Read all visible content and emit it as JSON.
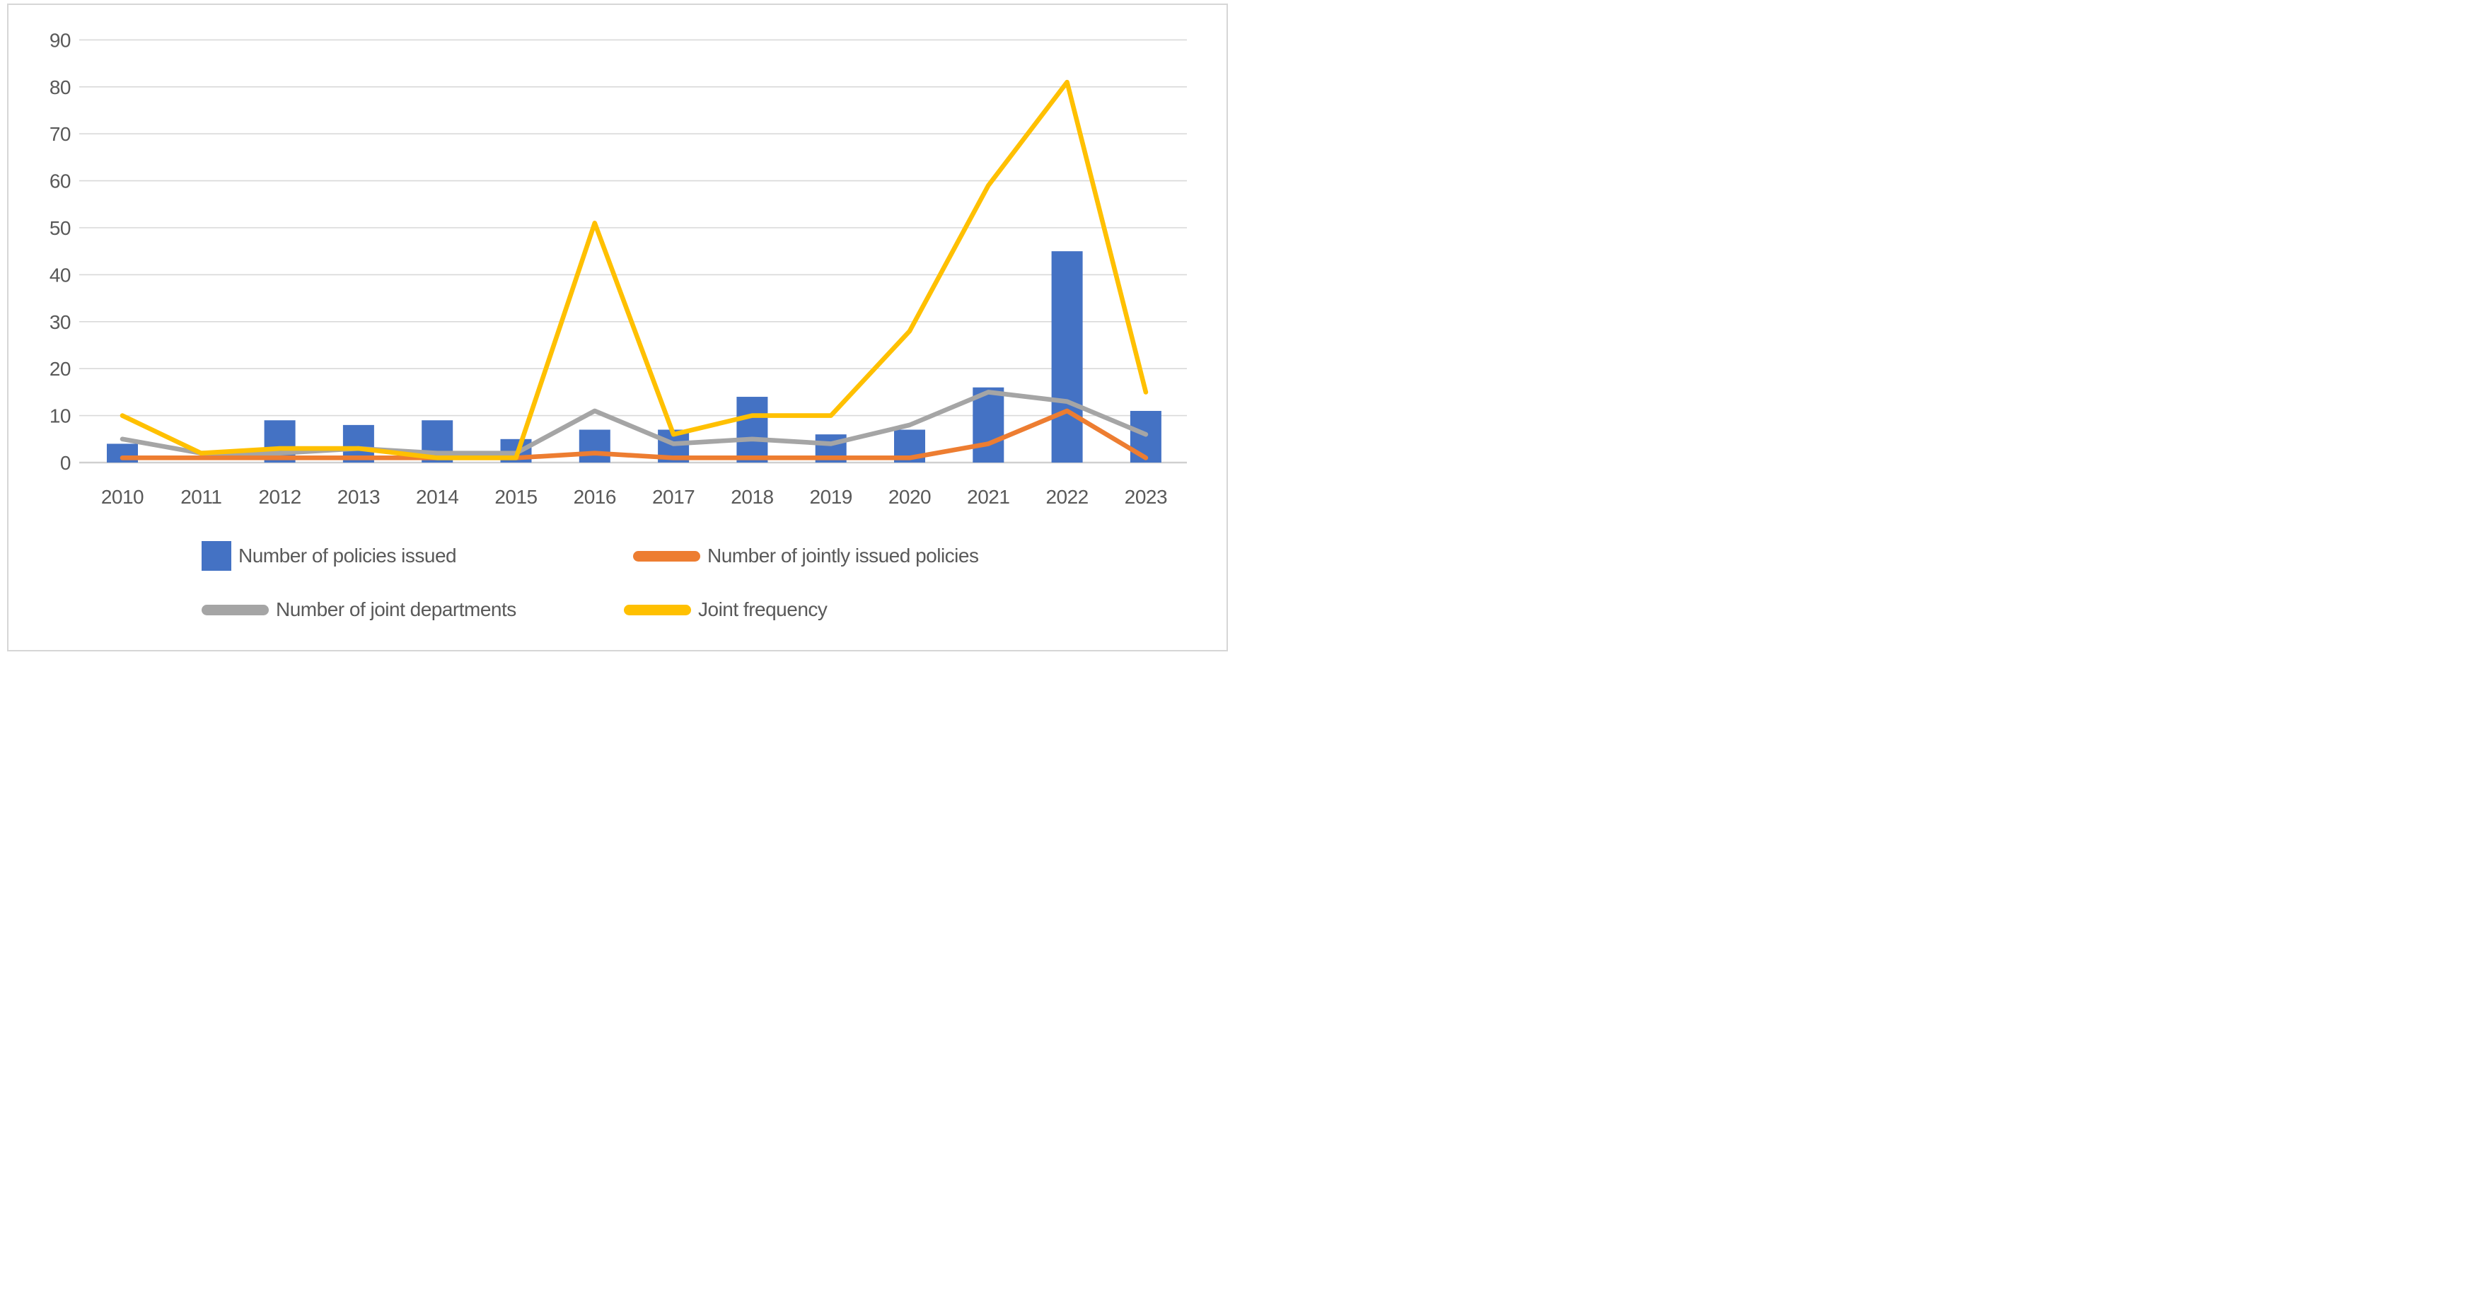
{
  "figure": {
    "background_color": "#FFFFFF",
    "frame_color": "#D6D6D6",
    "gridline_color": "#D9D9D9",
    "axis_line_color": "#D0D0D0",
    "text_color": "#595959"
  },
  "chart_data": {
    "type": "bar",
    "subtype": "combo-bar-and-lines",
    "title": "",
    "xlabel": "",
    "ylabel": "",
    "categories": [
      "2010",
      "2011",
      "2012",
      "2013",
      "2014",
      "2015",
      "2016",
      "2017",
      "2018",
      "2019",
      "2020",
      "2021",
      "2022",
      "2023"
    ],
    "series": [
      {
        "name": "Number of policies issued",
        "type": "bar",
        "color": "#4472C4",
        "values": [
          4,
          0,
          9,
          8,
          9,
          5,
          7,
          7,
          14,
          6,
          7,
          16,
          45,
          11
        ]
      },
      {
        "name": "Number of jointly issued policies",
        "type": "line",
        "color": "#ED7D31",
        "values": [
          1,
          1,
          1,
          1,
          1,
          1,
          2,
          1,
          1,
          1,
          1,
          4,
          11,
          1
        ]
      },
      {
        "name": "Number of joint departments",
        "type": "line",
        "color": "#A5A5A5",
        "values": [
          5,
          2,
          2,
          3,
          2,
          2,
          11,
          4,
          5,
          4,
          8,
          15,
          13,
          6
        ]
      },
      {
        "name": "Joint frequency",
        "type": "line",
        "color": "#FFC000",
        "values": [
          10,
          2,
          3,
          3,
          1,
          1,
          51,
          6,
          10,
          10,
          28,
          59,
          81,
          15
        ]
      }
    ],
    "y_axis": {
      "min": 0,
      "max": 90,
      "step": 10,
      "tick_labels": [
        "0",
        "10",
        "20",
        "30",
        "40",
        "50",
        "60",
        "70",
        "80",
        "90"
      ]
    },
    "grid": true,
    "legend_position": "bottom"
  },
  "legend": {
    "items": [
      {
        "label": "Number of policies issued",
        "marker": "square",
        "color": "#4472C4"
      },
      {
        "label": "Number of jointly issued policies",
        "marker": "line",
        "color": "#ED7D31"
      },
      {
        "label": "Number of joint departments",
        "marker": "line",
        "color": "#A5A5A5"
      },
      {
        "label": "Joint frequency",
        "marker": "line",
        "color": "#FFC000"
      }
    ]
  }
}
